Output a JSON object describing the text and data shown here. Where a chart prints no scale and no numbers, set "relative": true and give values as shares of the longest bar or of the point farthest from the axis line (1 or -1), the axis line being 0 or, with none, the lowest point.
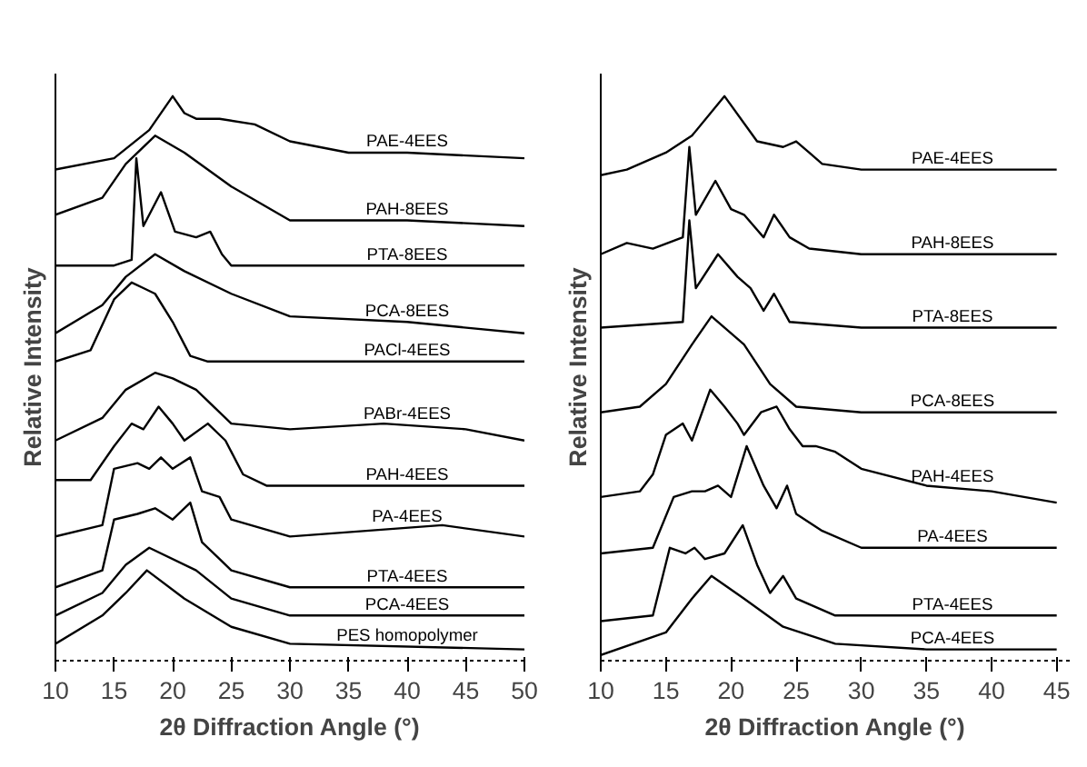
{
  "chart_data": [
    {
      "type": "line",
      "relative": true,
      "xlabel": "2θ Diffraction Angle (°)",
      "ylabel": "Relative Intensity",
      "xlim": [
        10,
        50
      ],
      "xticks": [
        10,
        15,
        20,
        25,
        30,
        35,
        40,
        45,
        50
      ],
      "grid": false,
      "series": [
        {
          "name": "PAE-4EES",
          "color": "#000000",
          "x": [
            10,
            15,
            18,
            20,
            21,
            22,
            24,
            27,
            30,
            35,
            40,
            50
          ],
          "values": [
            0.87,
            0.89,
            0.94,
            1.0,
            0.97,
            0.96,
            0.96,
            0.95,
            0.92,
            0.9,
            0.9,
            0.89
          ]
        },
        {
          "name": "PAH-8EES",
          "color": "#000000",
          "x": [
            10,
            14,
            16,
            18.5,
            21,
            25,
            30,
            40,
            50
          ],
          "values": [
            0.79,
            0.82,
            0.88,
            0.93,
            0.9,
            0.84,
            0.78,
            0.78,
            0.77
          ]
        },
        {
          "name": "PTA-8EES",
          "color": "#000000",
          "x": [
            10,
            15,
            16.5,
            16.9,
            17.5,
            19,
            20.2,
            22,
            23.2,
            24.2,
            25,
            30,
            40,
            50
          ],
          "values": [
            0.7,
            0.7,
            0.71,
            0.89,
            0.77,
            0.83,
            0.76,
            0.75,
            0.76,
            0.72,
            0.7,
            0.7,
            0.7,
            0.7
          ]
        },
        {
          "name": "PCA-8EES",
          "color": "#000000",
          "x": [
            10,
            14,
            16,
            18.5,
            21,
            25,
            30,
            40,
            50
          ],
          "values": [
            0.58,
            0.63,
            0.68,
            0.72,
            0.69,
            0.65,
            0.61,
            0.6,
            0.58
          ]
        },
        {
          "name": "PACl-4EES",
          "color": "#000000",
          "x": [
            10,
            13,
            15,
            16.5,
            17.5,
            18.5,
            20,
            21.5,
            23,
            25,
            50
          ],
          "values": [
            0.53,
            0.55,
            0.64,
            0.67,
            0.66,
            0.65,
            0.6,
            0.54,
            0.53,
            0.53,
            0.53
          ]
        },
        {
          "name": "PABr-4EES",
          "color": "#000000",
          "x": [
            10,
            14,
            16,
            18.5,
            20,
            22,
            25,
            30,
            38,
            45,
            50
          ],
          "values": [
            0.39,
            0.43,
            0.48,
            0.51,
            0.5,
            0.48,
            0.42,
            0.41,
            0.42,
            0.41,
            0.39
          ]
        },
        {
          "name": "PAH-4EES",
          "color": "#000000",
          "x": [
            10,
            13,
            15,
            16.5,
            17.5,
            18.8,
            20,
            21,
            23,
            24.5,
            26,
            28,
            30,
            50
          ],
          "values": [
            0.32,
            0.32,
            0.38,
            0.42,
            0.41,
            0.45,
            0.42,
            0.39,
            0.42,
            0.39,
            0.33,
            0.31,
            0.31,
            0.31
          ]
        },
        {
          "name": "PA-4EES",
          "color": "#000000",
          "x": [
            10,
            14,
            15,
            17,
            18,
            19,
            20,
            21.5,
            22.5,
            24,
            25,
            30,
            43,
            50
          ],
          "values": [
            0.22,
            0.24,
            0.34,
            0.35,
            0.34,
            0.36,
            0.34,
            0.36,
            0.3,
            0.29,
            0.25,
            0.22,
            0.24,
            0.22
          ]
        },
        {
          "name": "PTA-4EES",
          "color": "#000000",
          "x": [
            10,
            14,
            15,
            17,
            18.5,
            20,
            21.5,
            22.5,
            24,
            25,
            30,
            50
          ],
          "values": [
            0.13,
            0.16,
            0.25,
            0.26,
            0.27,
            0.25,
            0.28,
            0.21,
            0.18,
            0.16,
            0.13,
            0.13
          ]
        },
        {
          "name": "PCA-4EES",
          "color": "#000000",
          "x": [
            10,
            14,
            16,
            18,
            22,
            25,
            30,
            50
          ],
          "values": [
            0.08,
            0.12,
            0.17,
            0.2,
            0.16,
            0.11,
            0.08,
            0.08
          ]
        },
        {
          "name": "PES homopolymer",
          "color": "#000000",
          "x": [
            10,
            14,
            16,
            17.8,
            21,
            25,
            30,
            50
          ],
          "values": [
            0.03,
            0.08,
            0.12,
            0.16,
            0.11,
            0.06,
            0.03,
            0.02
          ]
        }
      ]
    },
    {
      "type": "line",
      "relative": true,
      "xlabel": "2θ Diffraction Angle (°)",
      "ylabel": "Relative Intensity",
      "xlim": [
        10,
        46
      ],
      "xticks": [
        10,
        15,
        20,
        25,
        30,
        35,
        40,
        45
      ],
      "grid": false,
      "series": [
        {
          "name": "PAE-4EES",
          "color": "#000000",
          "x": [
            10,
            12,
            15,
            17,
            19.5,
            22,
            24,
            25,
            26,
            27,
            30,
            45
          ],
          "values": [
            0.86,
            0.87,
            0.9,
            0.93,
            1.0,
            0.92,
            0.91,
            0.92,
            0.9,
            0.88,
            0.87,
            0.87
          ]
        },
        {
          "name": "PAH-8EES",
          "color": "#000000",
          "x": [
            10,
            12,
            14,
            16.3,
            16.8,
            17.3,
            18.8,
            20,
            21,
            22.5,
            23.3,
            24.5,
            26,
            30,
            45
          ],
          "values": [
            0.72,
            0.74,
            0.73,
            0.75,
            0.91,
            0.79,
            0.85,
            0.8,
            0.79,
            0.75,
            0.79,
            0.75,
            0.73,
            0.72,
            0.72
          ]
        },
        {
          "name": "PTA-8EES",
          "color": "#000000",
          "x": [
            10,
            16.3,
            16.8,
            17.3,
            19,
            20.5,
            21.5,
            22.5,
            23.3,
            24.5,
            30,
            45
          ],
          "values": [
            0.59,
            0.6,
            0.78,
            0.66,
            0.72,
            0.68,
            0.66,
            0.62,
            0.65,
            0.6,
            0.59,
            0.59
          ]
        },
        {
          "name": "PCA-8EES",
          "color": "#000000",
          "x": [
            10,
            13,
            15,
            17,
            18.5,
            21,
            23,
            25,
            30,
            45
          ],
          "values": [
            0.44,
            0.45,
            0.49,
            0.56,
            0.61,
            0.56,
            0.49,
            0.45,
            0.44,
            0.44
          ]
        },
        {
          "name": "PAH-4EES",
          "color": "#000000",
          "x": [
            10,
            13,
            14,
            15,
            16.3,
            17,
            18.4,
            19.5,
            20.5,
            21,
            22.3,
            23.5,
            24.5,
            25.5,
            26.5,
            28,
            30,
            35,
            40,
            45
          ],
          "values": [
            0.29,
            0.3,
            0.33,
            0.4,
            0.42,
            0.39,
            0.48,
            0.45,
            0.42,
            0.4,
            0.44,
            0.45,
            0.41,
            0.38,
            0.38,
            0.37,
            0.34,
            0.31,
            0.3,
            0.28
          ]
        },
        {
          "name": "PA-4EES",
          "color": "#000000",
          "x": [
            10,
            14,
            15.6,
            17,
            18,
            19,
            20,
            21.2,
            22.5,
            23.5,
            24.3,
            25,
            27,
            30,
            45
          ],
          "values": [
            0.19,
            0.2,
            0.29,
            0.3,
            0.3,
            0.31,
            0.29,
            0.38,
            0.31,
            0.27,
            0.31,
            0.26,
            0.23,
            0.2,
            0.2
          ]
        },
        {
          "name": "PTA-4EES",
          "color": "#000000",
          "x": [
            10,
            14,
            15.3,
            16.5,
            17.2,
            18,
            19.5,
            20.9,
            22,
            23,
            24,
            25,
            28,
            45
          ],
          "values": [
            0.07,
            0.08,
            0.2,
            0.19,
            0.2,
            0.18,
            0.19,
            0.24,
            0.17,
            0.12,
            0.15,
            0.11,
            0.08,
            0.08
          ]
        },
        {
          "name": "PCA-4EES",
          "color": "#000000",
          "x": [
            10,
            15,
            17,
            18.5,
            21,
            24,
            28,
            35,
            45
          ],
          "values": [
            0.01,
            0.05,
            0.11,
            0.15,
            0.11,
            0.06,
            0.03,
            0.02,
            0.02
          ]
        }
      ]
    }
  ]
}
